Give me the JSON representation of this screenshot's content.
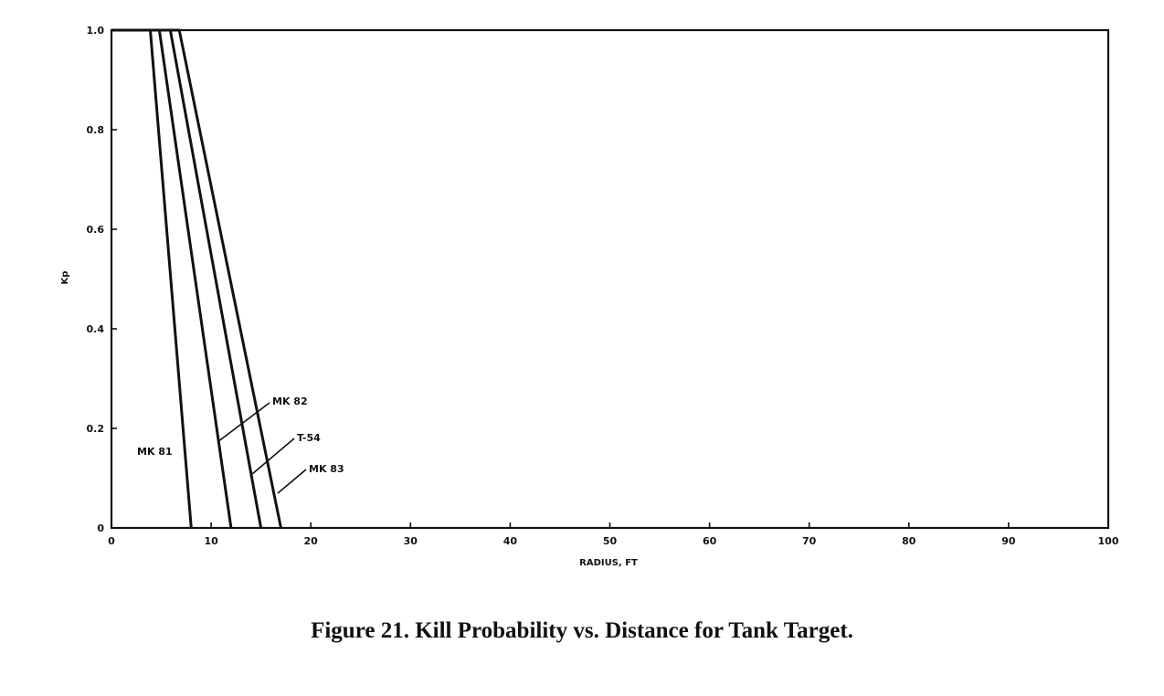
{
  "figure": {
    "caption": "Figure 21.  Kill Probability vs. Distance for Tank Target."
  },
  "chart_data": {
    "type": "line",
    "xlabel": "RADIUS, FT",
    "ylabel": "Kp",
    "xlim": [
      0,
      100
    ],
    "ylim": [
      0,
      1.0
    ],
    "x_ticks": [
      0,
      10,
      20,
      30,
      40,
      50,
      60,
      70,
      80,
      90,
      100
    ],
    "x_tick_labels": [
      "0",
      "10",
      "20",
      "30",
      "40",
      "50",
      "60",
      "70",
      "80",
      "90",
      "100"
    ],
    "y_ticks": [
      0,
      0.2,
      0.4,
      0.6,
      0.8,
      1.0
    ],
    "y_tick_labels": [
      "0",
      "0.2",
      "0.4",
      "0.6",
      "0.8",
      "1.0"
    ],
    "grid": false,
    "line_color": "#111111",
    "series": [
      {
        "name": "MK 81",
        "x": [
          0,
          3.9,
          8.0
        ],
        "y": [
          1.0,
          1.0,
          0
        ]
      },
      {
        "name": "MK 82",
        "x": [
          0,
          4.8,
          12.0
        ],
        "y": [
          1.0,
          1.0,
          0
        ]
      },
      {
        "name": "T-54",
        "x": [
          0,
          5.9,
          15.0
        ],
        "y": [
          1.0,
          1.0,
          0
        ]
      },
      {
        "name": "MK 83",
        "x": [
          0,
          6.8,
          17.0
        ],
        "y": [
          1.0,
          1.0,
          0
        ]
      }
    ]
  }
}
